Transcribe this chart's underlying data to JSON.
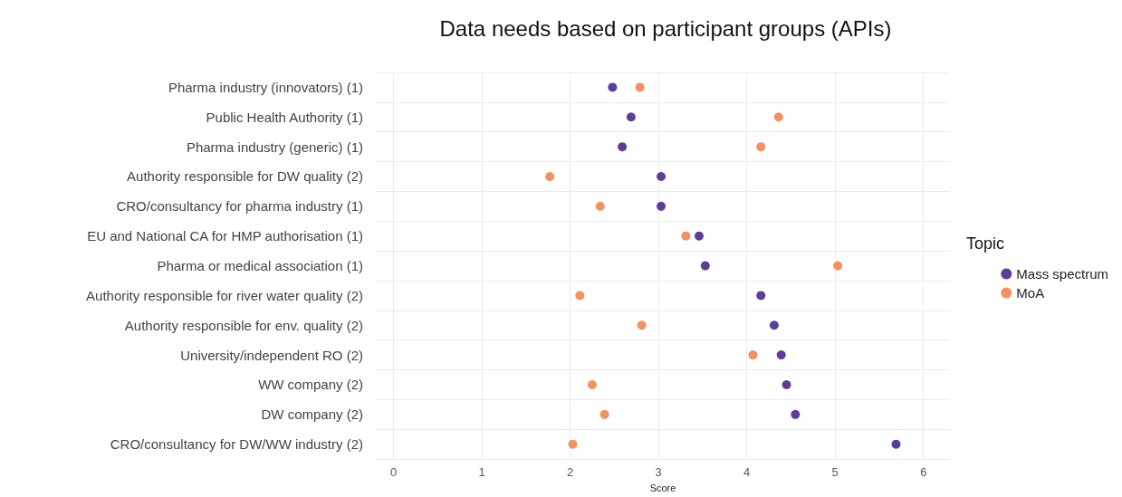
{
  "chart_data": {
    "type": "scatter",
    "orientation": "horizontal",
    "title": "Data needs based on participant groups (APIs)",
    "xlabel": "Score",
    "legend_title": "Topic",
    "legend": "right",
    "grid": true,
    "marker": "circle",
    "categories": [
      "Pharma industry (innovators) (1)",
      "Public Health Authority (1)",
      "Pharma industry (generic) (1)",
      "Authority responsible for DW quality (2)",
      "CRO/consultancy for pharma industry (1)",
      "EU and National CA for HMP authorisation (1)",
      "Pharma or medical association (1)",
      "Authority responsible for river water quality (2)",
      "Authority responsible for env. quality (2)",
      "University/independent RO (2)",
      "WW company (2)",
      "DW company (2)",
      "CRO/consultancy for DW/WW industry (2)"
    ],
    "xlim": [
      -0.2,
      6.3
    ],
    "xticks": [
      0,
      1,
      2,
      3,
      4,
      5,
      6
    ],
    "series": [
      {
        "name": "Mass spectrum",
        "color": "#5e3c99",
        "values": [
          2.48,
          2.69,
          2.59,
          3.03,
          3.03,
          3.46,
          3.53,
          4.16,
          4.31,
          4.39,
          4.45,
          4.55,
          5.69
        ]
      },
      {
        "name": "MoA",
        "color": "#f4915e",
        "values": [
          2.79,
          4.36,
          4.16,
          1.77,
          2.34,
          3.31,
          5.03,
          2.11,
          2.81,
          4.07,
          2.25,
          2.39,
          2.03
        ]
      }
    ]
  }
}
